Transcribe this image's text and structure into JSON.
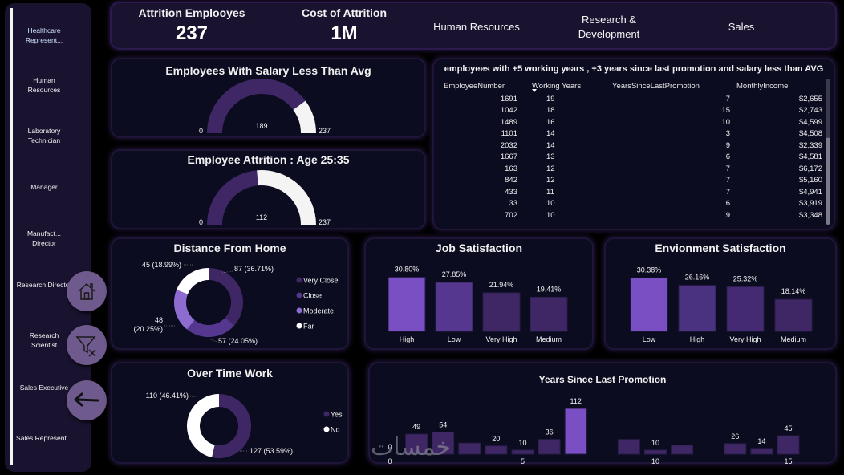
{
  "sidebar": {
    "items": [
      {
        "label": "Healthcare Represent...",
        "active": true
      },
      {
        "label": "Human Resources"
      },
      {
        "label": "Laboratory Technician"
      },
      {
        "label": "Manager"
      },
      {
        "label": "Manufact... Director"
      },
      {
        "label": "Research Director"
      },
      {
        "label": "Research Scientist"
      },
      {
        "label": "Sales Executive"
      },
      {
        "label": "Sales Represent..."
      }
    ],
    "buttons": [
      {
        "name": "home-button",
        "icon": "home-icon"
      },
      {
        "name": "clear-filters-button",
        "icon": "filter-clear-icon"
      },
      {
        "name": "back-button",
        "icon": "arrow-left-icon"
      }
    ]
  },
  "header": {
    "kpis": [
      {
        "label": "Attrition Emplooyes",
        "value": "237"
      },
      {
        "label": "Cost of Attrition",
        "value": "1M"
      }
    ],
    "departments": [
      "Human Resources",
      "Research & Development",
      "Sales"
    ]
  },
  "gauges": [
    {
      "title": "Employees With Salary Less Than Avg",
      "value": 189,
      "min": 0,
      "max": 237,
      "value_label": "189",
      "min_label": "0",
      "max_label": "237"
    },
    {
      "title": "Employee Attrition : Age 25:35",
      "value": 112,
      "min": 0,
      "max": 237,
      "value_label": "112",
      "min_label": "0",
      "max_label": "237"
    }
  ],
  "table": {
    "title": "employees with +5 working years , +3 years since last promotion and salary less than AVG",
    "columns": [
      "EmployeeNumber",
      "Working Years",
      "YearsSinceLastPromotion",
      "MonthlyIncome"
    ],
    "sorted_column": "Working Years",
    "sort_direction": "descending",
    "rows": [
      [
        "1691",
        "19",
        "7",
        "$2,655"
      ],
      [
        "1042",
        "18",
        "15",
        "$2,743"
      ],
      [
        "1489",
        "16",
        "10",
        "$4,599"
      ],
      [
        "1101",
        "14",
        "3",
        "$4,508"
      ],
      [
        "2032",
        "14",
        "9",
        "$2,339"
      ],
      [
        "1667",
        "13",
        "6",
        "$4,581"
      ],
      [
        "163",
        "12",
        "7",
        "$6,172"
      ],
      [
        "842",
        "12",
        "7",
        "$5,160"
      ],
      [
        "433",
        "11",
        "7",
        "$4,941"
      ],
      [
        "33",
        "10",
        "6",
        "$3,919"
      ],
      [
        "702",
        "10",
        "9",
        "$3,348"
      ]
    ]
  },
  "colors": {
    "background": "#000000",
    "card": "#0b0c20",
    "sidebar": "#1a1330",
    "accent_light": "#7a4fc4",
    "accent_mid": "#55378f",
    "accent_dark": "#3e2764",
    "white": "#f4f4f4",
    "button": "#6e5a8d"
  },
  "chart_data": [
    {
      "type": "pie",
      "variant": "donut",
      "title": "Distance From Home",
      "categories": [
        "Very Close",
        "Close",
        "Moderate",
        "Far"
      ],
      "values": [
        87,
        57,
        48,
        45
      ],
      "percent_labels": [
        "87 (36.71%)",
        "57 (24.05%)",
        "48 (20.25%)",
        "45 (18.99%)"
      ],
      "colors": [
        "#3e2764",
        "#55378f",
        "#8e6bd0",
        "#ffffff"
      ],
      "legend": "right"
    },
    {
      "type": "bar",
      "title": "Job Satisfaction",
      "categories": [
        "High",
        "Low",
        "Very High",
        "Medium"
      ],
      "values": [
        30.8,
        27.85,
        21.94,
        19.41
      ],
      "value_labels": [
        "30.80%",
        "27.85%",
        "21.94%",
        "19.41%"
      ],
      "colors": [
        "#7a4fc4",
        "#55378f",
        "#3e2764",
        "#3e2764"
      ],
      "ylim": [
        0,
        31
      ]
    },
    {
      "type": "bar",
      "title": "Envionment Satisfaction",
      "categories": [
        "Low",
        "High",
        "Very High",
        "Medium"
      ],
      "values": [
        30.38,
        26.16,
        25.32,
        18.14
      ],
      "value_labels": [
        "30.38%",
        "26.16%",
        "25.32%",
        "18.14%"
      ],
      "colors": [
        "#7a4fc4",
        "#4b3280",
        "#432a72",
        "#3e2764"
      ],
      "ylim": [
        0,
        31
      ]
    },
    {
      "type": "pie",
      "variant": "donut",
      "title": "Over Time Work",
      "categories": [
        "Yes",
        "No"
      ],
      "values": [
        127,
        110
      ],
      "percent_labels": [
        "127 (53.59%)",
        "110 (46.41%)"
      ],
      "colors": [
        "#3e2764",
        "#ffffff"
      ],
      "legend": "right"
    },
    {
      "type": "bar",
      "title": "Years Since Last Promotion",
      "x": [
        0,
        1,
        2,
        3,
        4,
        5,
        6,
        7,
        8,
        9,
        10,
        11,
        12,
        13,
        14,
        15
      ],
      "values": [
        0,
        49,
        54,
        27,
        20,
        10,
        36,
        112,
        0,
        36,
        10,
        22,
        0,
        26,
        14,
        45
      ],
      "shown_labels": {
        "0": "0",
        "1": "49",
        "2": "54",
        "4": "20",
        "5": "10",
        "6": "36",
        "7": "112",
        "10": "10",
        "13": "26",
        "14": "14",
        "15": "45"
      },
      "x_ticks": [
        "0",
        "5",
        "10",
        "15"
      ],
      "highlight": 7,
      "colors": {
        "normal": "#3e2764",
        "highlight": "#7a4fc4"
      },
      "ylim": [
        0,
        112
      ]
    }
  ],
  "watermark": "خمسات"
}
